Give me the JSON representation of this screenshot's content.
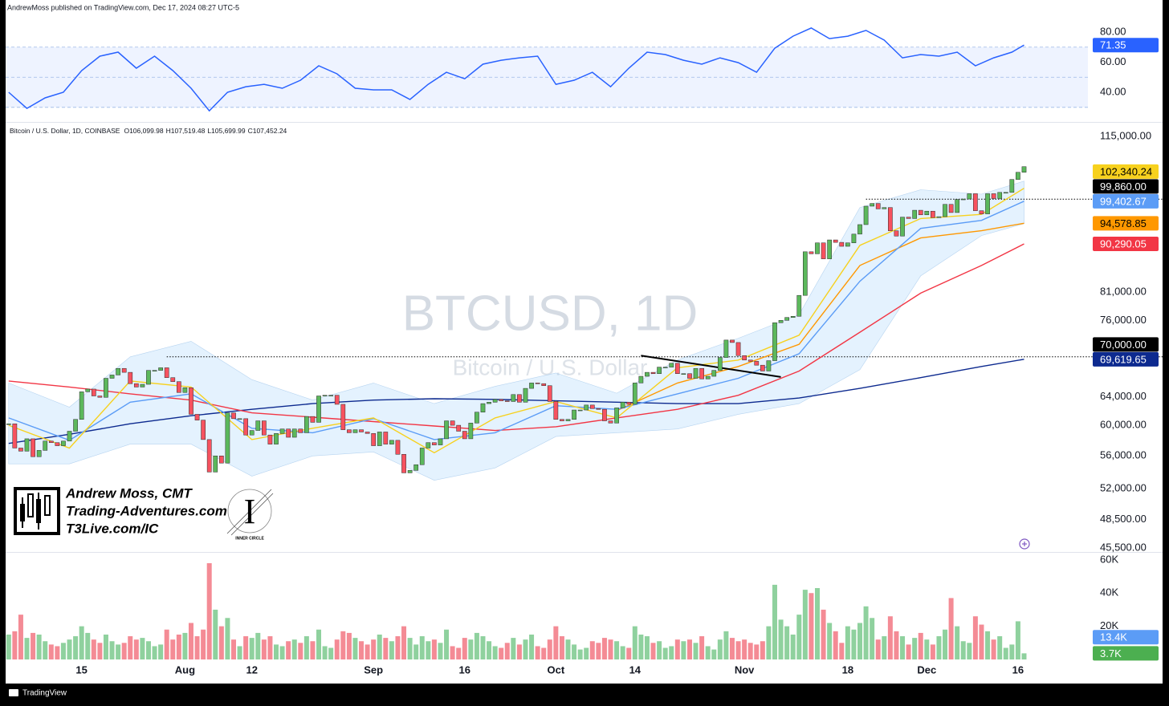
{
  "header": {
    "publisher": "AndrewMoss published on TradingView.com, Dec 17, 2024 08:27 UTC-5",
    "footer": "TradingView"
  },
  "branding": {
    "lines": [
      "Andrew Moss, CMT",
      "Trading-Adventures.com",
      "T3Live.com/IC"
    ],
    "badge": "INNER CIRCLE"
  },
  "chart_data": [
    {
      "type": "line",
      "color": "#2962ff",
      "band_color": "rgba(41,98,255,0.08)",
      "xlim": [
        -0.5,
        177.5
      ],
      "ylim": [
        20.3,
        89.6
      ],
      "yticks": [
        {
          "value": 80,
          "label": "80.00"
        },
        {
          "value": 60,
          "label": "60.00"
        },
        {
          "value": 40,
          "label": "40.00"
        }
      ],
      "levels": [
        70,
        50,
        30
      ],
      "x": [
        0,
        3,
        6,
        9,
        12,
        15,
        18,
        21,
        24,
        27,
        30,
        33,
        36,
        39,
        42,
        45,
        48,
        51,
        54,
        57,
        60,
        63,
        66,
        69,
        72,
        75,
        78,
        81,
        84,
        87,
        90,
        93,
        96,
        99,
        102,
        105,
        108,
        111,
        114,
        117,
        120,
        123,
        126,
        129,
        132,
        135,
        138,
        141,
        144,
        147,
        150,
        153,
        156,
        159,
        162,
        165,
        167
      ],
      "values": [
        40,
        29.3,
        36.3,
        40,
        54.4,
        64,
        66.7,
        56,
        64,
        54.4,
        42.7,
        27.7,
        40,
        43.7,
        45.3,
        42.7,
        48,
        57.6,
        52.3,
        42.7,
        41.6,
        41.6,
        35.2,
        45.3,
        53.3,
        49,
        58.7,
        61.3,
        62.9,
        64,
        45.3,
        48,
        53.3,
        43.7,
        56,
        66.7,
        65.1,
        61.3,
        58.7,
        62.9,
        59.7,
        53.3,
        69.3,
        77.3,
        82.7,
        75.7,
        77.3,
        81.1,
        74.7,
        62.9,
        65.1,
        64,
        66.7,
        57.6,
        62.9,
        66.7,
        71.35
      ]
    },
    {
      "type": "candlestick",
      "title": "Bitcoin / U.S. Dollar, 1D, COINBASE",
      "ohlc_labels": [
        "O106,099.98",
        "H107,519.48",
        "L105,699.99",
        "C107,452.24"
      ],
      "watermark": "BTCUSD, 1D",
      "watermark_subtitle": "Bitcoin / U.S. Dollar",
      "up_color": "#5cb85c",
      "down_color": "#f7525f",
      "log": true,
      "xlim": [
        -0.5,
        177.5
      ],
      "ylim": [
        45100,
        118200
      ],
      "yticks": [
        {
          "value": 115000,
          "label": "115,000.00"
        },
        {
          "value": 81000,
          "label": "81,000.00"
        },
        {
          "value": 76000,
          "label": "76,000.00"
        },
        {
          "value": 64000,
          "label": "64,000.00"
        },
        {
          "value": 60000,
          "label": "60,000.00"
        },
        {
          "value": 56000,
          "label": "56,000.00"
        },
        {
          "value": 52000,
          "label": "52,000.00"
        },
        {
          "value": 48500,
          "label": "48,500.00"
        },
        {
          "value": 45500,
          "label": "45,500.00"
        }
      ],
      "values": [
        60200,
        57000,
        56600,
        58200,
        55900,
        56700,
        57900,
        57700,
        57300,
        57900,
        59200,
        60800,
        64700,
        65100,
        64100,
        63900,
        66700,
        67200,
        68200,
        67600,
        65900,
        65400,
        65800,
        67900,
        67900,
        68300,
        66800,
        66200,
        64600,
        65300,
        61500,
        60700,
        58100,
        54000,
        56000,
        55100,
        61700,
        60900,
        60900,
        58700,
        59300,
        60600,
        58700,
        57500,
        58900,
        59500,
        58400,
        59500,
        59000,
        61200,
        60400,
        64100,
        64200,
        64200,
        62900,
        59400,
        59000,
        59400,
        59100,
        58900,
        57300,
        59100,
        57500,
        58000,
        56200,
        53900,
        54200,
        54900,
        57000,
        57700,
        57400,
        58200,
        60600,
        60000,
        59200,
        58200,
        60300,
        61800,
        63000,
        63200,
        63600,
        63400,
        63300,
        64300,
        63200,
        65200,
        66000,
        65900,
        65600,
        63300,
        60800,
        60600,
        60800,
        62100,
        62100,
        62800,
        62300,
        62200,
        60600,
        60300,
        62400,
        63200,
        62900,
        66000,
        67000,
        67600,
        67400,
        68400,
        68400,
        69000,
        67400,
        67400,
        66700,
        68200,
        66600,
        67000,
        67900,
        69900,
        72700,
        72300,
        70200,
        69500,
        69300,
        68700,
        67800,
        69400,
        75600,
        76000,
        76500,
        76700,
        80400,
        88700,
        88300,
        90500,
        87300,
        91100,
        90600,
        89800,
        90500,
        92300,
        94300,
        98300,
        98900,
        97700,
        98000,
        93000,
        91900,
        95900,
        95600,
        97400,
        96400,
        97200,
        95800,
        96000,
        98700,
        96900,
        99800,
        99900,
        101100,
        97300,
        96600,
        101100,
        100000,
        101400,
        101400,
        104400,
        106100,
        107452.24
      ],
      "band": {
        "color": "rgba(33,150,243,0.12)",
        "x": [
          0,
          10,
          20,
          30,
          40,
          50,
          60,
          70,
          80,
          90,
          100,
          110,
          120,
          130,
          140,
          150,
          160,
          167
        ],
        "upper": [
          66000,
          62500,
          70000,
          72500,
          66500,
          63500,
          66000,
          63000,
          65500,
          67500,
          64500,
          69500,
          73000,
          77000,
          98000,
          102000,
          101000,
          104000
        ],
        "lower": [
          55000,
          55000,
          57500,
          57500,
          53500,
          56000,
          56500,
          53000,
          54500,
          58500,
          59000,
          59500,
          61500,
          63000,
          68000,
          84000,
          92000,
          94500
        ]
      },
      "overlays": [
        {
          "color": "#0d2a8f",
          "x": [
            0,
            10,
            20,
            30,
            40,
            50,
            60,
            70,
            80,
            90,
            100,
            110,
            120,
            130,
            140,
            150,
            160,
            167
          ],
          "values": [
            57600,
            58800,
            60200,
            61300,
            62200,
            63000,
            63500,
            63700,
            63600,
            63400,
            63200,
            63000,
            63000,
            63800,
            65200,
            66800,
            68500,
            69619.65
          ],
          "last_label": "69,619.65"
        },
        {
          "color": "#f23645",
          "x": [
            0,
            10,
            20,
            30,
            40,
            50,
            60,
            70,
            80,
            90,
            100,
            110,
            120,
            130,
            140,
            150,
            160,
            167
          ],
          "values": [
            66300,
            65400,
            64400,
            63500,
            61700,
            61100,
            60500,
            59900,
            59300,
            59800,
            61000,
            62200,
            64200,
            67800,
            74000,
            80800,
            86000,
            90290.05
          ],
          "last_label": "90,290.05"
        },
        {
          "color": "#ff9800",
          "x": [
            100,
            110,
            120,
            130,
            140,
            150,
            160,
            167
          ],
          "values": [
            62000,
            66000,
            68500,
            72000,
            86000,
            91500,
            93000,
            94578.85
          ],
          "last_label": "94,578.85"
        },
        {
          "color": "#5b9cf6",
          "x": [
            0,
            10,
            20,
            30,
            40,
            50,
            60,
            70,
            80,
            90,
            100,
            110,
            120,
            130,
            140,
            150,
            160,
            167
          ],
          "values": [
            61000,
            58000,
            63200,
            64400,
            59600,
            59000,
            60900,
            58100,
            59000,
            62700,
            62200,
            64400,
            66700,
            70500,
            83000,
            93500,
            95200,
            99402.67
          ],
          "last_label": "99,402.67"
        },
        {
          "color": "#f7d11e",
          "x": [
            0,
            10,
            20,
            30,
            40,
            50,
            60,
            70,
            80,
            90,
            100,
            110,
            120,
            130,
            140,
            150,
            160,
            167
          ],
          "values": [
            60000,
            57000,
            66300,
            65400,
            58100,
            59600,
            61000,
            56400,
            61000,
            63300,
            61000,
            68300,
            69500,
            73500,
            90000,
            95600,
            96500,
            102340.24
          ],
          "last_label": "102,340.24"
        }
      ],
      "levels": [
        {
          "value": 99860,
          "label": "99,860.00",
          "from": 141,
          "color": "#000000"
        },
        {
          "value": 70000,
          "label": "70,000.00",
          "from": 26,
          "color": "#000000"
        }
      ],
      "trendline": {
        "x": [
          104,
          127
        ],
        "values": [
          70200,
          66900
        ]
      }
    },
    {
      "type": "bar",
      "up_color": "#8fd19e",
      "down_color": "#f48b95",
      "xlim": [
        -0.5,
        177.5
      ],
      "ylim": [
        0,
        63.8
      ],
      "yticks": [
        {
          "value": 60,
          "label": "60K"
        },
        {
          "value": 40,
          "label": "40K"
        },
        {
          "value": 20,
          "label": "20K"
        }
      ],
      "xticks": [
        {
          "value": 12,
          "label": "15"
        },
        {
          "value": 29,
          "label": "Aug"
        },
        {
          "value": 40,
          "label": "12"
        },
        {
          "value": 60,
          "label": "Sep"
        },
        {
          "value": 75,
          "label": "16"
        },
        {
          "value": 90,
          "label": "Oct"
        },
        {
          "value": 103,
          "label": "14"
        },
        {
          "value": 121,
          "label": "Nov"
        },
        {
          "value": 138,
          "label": "18"
        },
        {
          "value": 151,
          "label": "Dec"
        },
        {
          "value": 166,
          "label": "16"
        }
      ],
      "values": [
        15,
        17,
        27,
        13,
        16,
        15,
        11,
        9,
        8,
        10,
        12,
        14,
        20,
        16,
        12,
        10,
        15,
        11,
        9,
        10,
        14,
        12,
        13,
        11,
        8,
        9,
        18,
        12,
        15,
        16,
        22,
        14,
        18,
        58,
        30,
        20,
        25,
        12,
        8,
        14,
        13,
        16,
        12,
        14,
        9,
        8,
        11,
        12,
        10,
        14,
        11,
        18,
        8,
        7,
        12,
        17,
        16,
        13,
        11,
        9,
        12,
        15,
        13,
        11,
        14,
        20,
        13,
        9,
        14,
        11,
        12,
        10,
        18,
        8,
        7,
        13,
        12,
        16,
        14,
        11,
        8,
        7,
        10,
        13,
        9,
        12,
        15,
        8,
        7,
        12,
        20,
        14,
        12,
        9,
        6,
        7,
        11,
        10,
        13,
        12,
        11,
        8,
        7,
        20,
        15,
        14,
        10,
        11,
        7,
        8,
        12,
        11,
        12,
        10,
        14,
        8,
        6,
        12,
        17,
        13,
        11,
        12,
        10,
        9,
        11,
        20,
        45,
        24,
        20,
        15,
        27,
        42,
        40,
        43,
        30,
        22,
        17,
        10,
        20,
        18,
        22,
        32,
        25,
        12,
        14,
        26,
        17,
        14,
        9,
        13,
        16,
        12,
        9,
        14,
        18,
        37,
        20,
        11,
        10,
        26,
        21,
        17,
        12,
        14,
        7,
        9,
        23,
        3.7
      ],
      "last_label": "3.7K",
      "last_color": "#4caf50",
      "ma": {
        "value": 13.4,
        "label": "13.4K",
        "color": "#5b9cf6"
      }
    }
  ]
}
